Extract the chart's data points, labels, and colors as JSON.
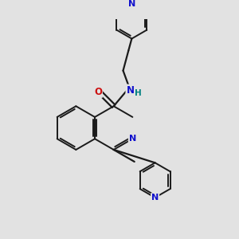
{
  "background_color": "#e2e2e2",
  "bond_color": "#1a1a1a",
  "N_color": "#1010cc",
  "O_color": "#cc1010",
  "NH_color": "#008080",
  "figsize": [
    3.0,
    3.0
  ],
  "dpi": 100,
  "xlim": [
    0,
    10
  ],
  "ylim": [
    0,
    10
  ]
}
